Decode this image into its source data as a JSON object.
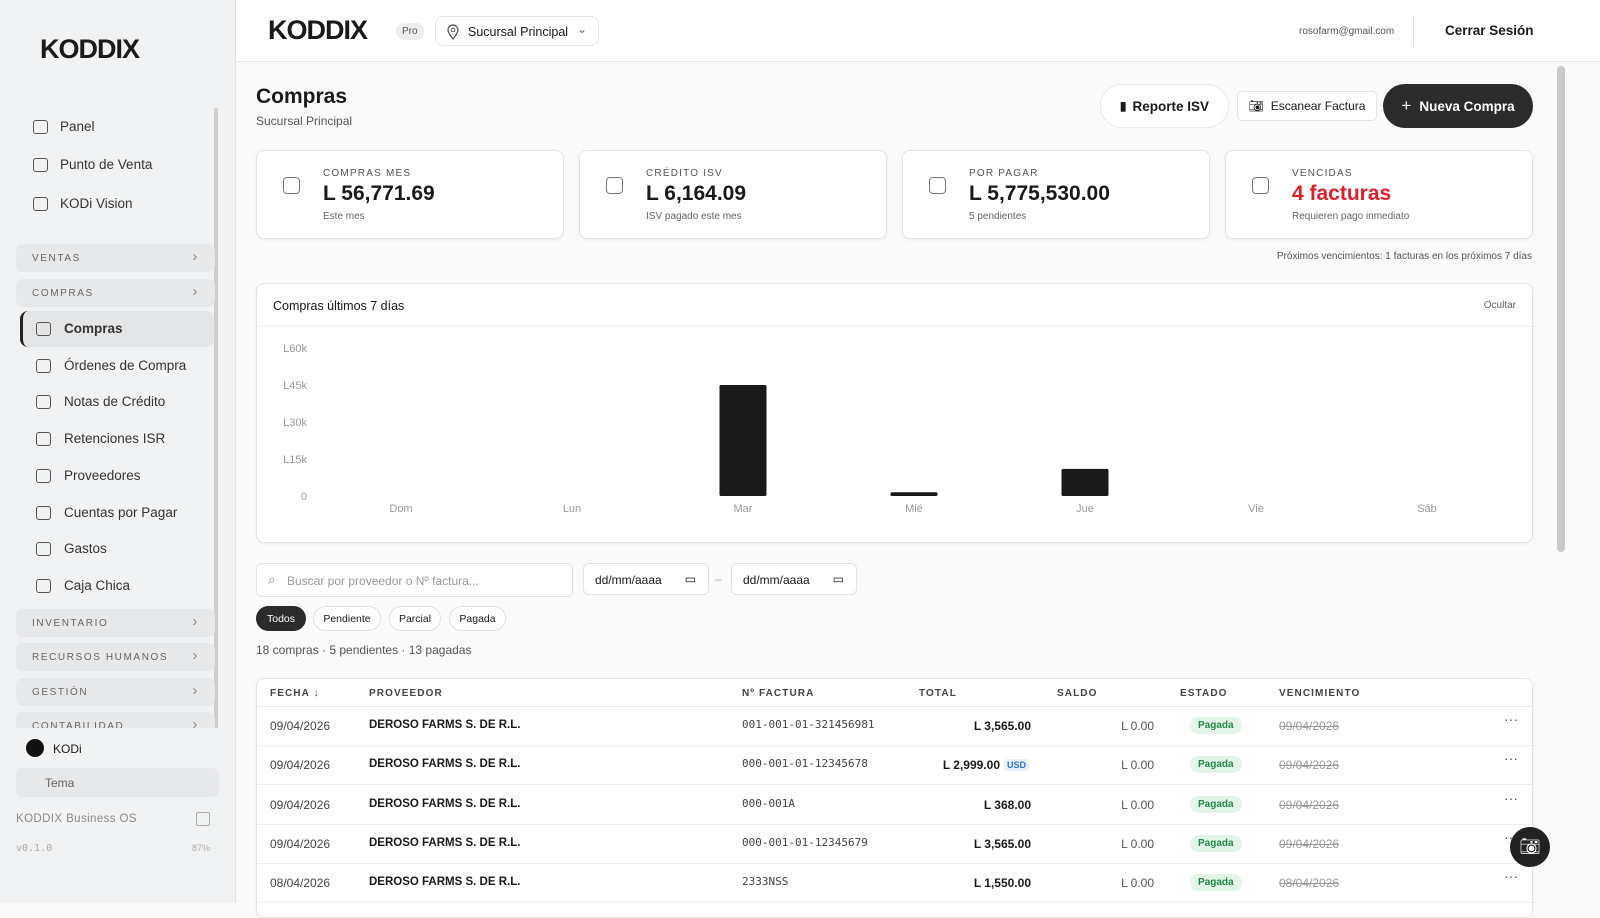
{
  "sidebar": {
    "logo": "KODDIX",
    "top_items": [
      "Panel",
      "Punto de Venta",
      "KODi Vision"
    ],
    "sections": [
      {
        "label": "VENTAS"
      },
      {
        "label": "COMPRAS",
        "items": [
          "Compras",
          "Órdenes de Compra",
          "Notas de Crédito",
          "Retenciones ISR",
          "Proveedores",
          "Cuentas por Pagar",
          "Gastos",
          "Caja Chica"
        ]
      },
      {
        "label": "INVENTARIO"
      },
      {
        "label": "RECURSOS HUMANOS"
      },
      {
        "label": "GESTIÓN"
      },
      {
        "label": "CONTABILIDAD"
      }
    ],
    "user": "KODi",
    "theme": "Tema",
    "product": "KODDIX Business OS",
    "version": "v0.1.0",
    "zoom": "87%"
  },
  "header": {
    "logo": "KODDIX",
    "badge": "Pro",
    "branch": "Sucursal Principal",
    "email": "rosofarm@gmail.com",
    "logout": "Cerrar Sesión"
  },
  "page": {
    "title": "Compras",
    "subtitle": "Sucursal Principal",
    "buttons": [
      "Reporte ISV",
      "Escanear Factura",
      "Nueva Compra"
    ]
  },
  "stats": [
    {
      "label": "COMPRAS MES",
      "value": "L 56,771.69",
      "note": "Este mes"
    },
    {
      "label": "CRÉDITO ISV",
      "value": "L 6,164.09",
      "note": "ISV pagado este mes"
    },
    {
      "label": "POR PAGAR",
      "value": "L 5,775,530.00",
      "note": "5 pendientes"
    },
    {
      "label": "VENCIDAS",
      "value": "4 facturas",
      "note": "Requieren pago inmediato"
    }
  ],
  "due_note": "Próximos vencimientos: 1 facturas en los próximos 7 días",
  "chart_data": {
    "type": "bar",
    "title": "Compras últimos 7 días",
    "action": "Ocultar",
    "categories": [
      "Dom",
      "Lun",
      "Mar",
      "Mié",
      "Jue",
      "Vie",
      "Sáb"
    ],
    "values": [
      0,
      0,
      45000,
      1500,
      11000,
      0,
      0
    ],
    "color": "#1a1a1a",
    "ylim": [
      0,
      60000
    ],
    "yticks": [
      0,
      {
        "value": 15000,
        "label": "L15k"
      },
      {
        "value": 30000,
        "label": "L30k"
      },
      {
        "value": 45000,
        "label": "L45k"
      },
      {
        "value": 60000,
        "label": "L60k"
      }
    ],
    "grid": false
  },
  "filters": {
    "search": "Buscar por proveedor o Nº factura...",
    "date_from": "dd/mm/aaaa",
    "separator": "–",
    "date_to": "dd/mm/aaaa",
    "chips": [
      "Todos",
      "Pendiente",
      "Parcial",
      "Pagada"
    ],
    "summary": "18 compras · 5 pendientes · 13 pagadas"
  },
  "table": {
    "columns": [
      "FECHA ↓",
      "PROVEEDOR",
      "Nº FACTURA",
      "TOTAL",
      "SALDO",
      "ESTADO",
      "VENCIMIENTO"
    ],
    "rows": [
      {
        "fecha": "09/04/2026",
        "proveedor": "DEROSO FARMS S. DE R.L.",
        "factura": "001-001-01-321456981",
        "total": "L 3,565.00",
        "saldo": "L 0.00",
        "estado": "Pagada",
        "vencimiento": "09/04/2026"
      },
      {
        "fecha": "09/04/2026",
        "proveedor": "DEROSO FARMS S. DE R.L.",
        "factura": "000-001-01-12345678",
        "total": "L 2,999.00",
        "currency": "USD",
        "saldo": "L 0.00",
        "estado": "Pagada",
        "vencimiento": "09/04/2026"
      },
      {
        "fecha": "09/04/2026",
        "proveedor": "DEROSO FARMS S. DE R.L.",
        "factura": "000-001A",
        "total": "L 368.00",
        "saldo": "L 0.00",
        "estado": "Pagada",
        "vencimiento": "09/04/2026"
      },
      {
        "fecha": "09/04/2026",
        "proveedor": "DEROSO FARMS S. DE R.L.",
        "factura": "000-001-01-12345679",
        "total": "L 3,565.00",
        "saldo": "L 0.00",
        "estado": "Pagada",
        "vencimiento": "09/04/2026"
      },
      {
        "fecha": "08/04/2026",
        "proveedor": "DEROSO FARMS S. DE R.L.",
        "factura": "2333NSS",
        "total": "L 1,550.00",
        "saldo": "L 0.00",
        "estado": "Pagada",
        "vencimiento": "08/04/2026"
      }
    ]
  }
}
